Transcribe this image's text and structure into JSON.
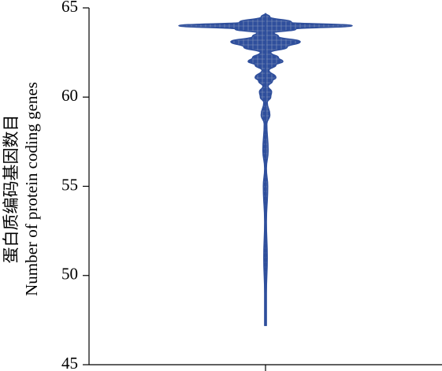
{
  "chart_data": {
    "type": "violin",
    "ylabel": [
      "蛋白质编码基因数目",
      "Number of protein coding genes"
    ],
    "categories": [
      null
    ],
    "y": [
      64.7,
      64.5,
      64.2,
      64.0,
      63.8,
      63.6,
      63.4,
      63.1,
      62.8,
      62.5,
      62.2,
      62.0,
      61.8,
      61.5,
      61.1,
      60.9,
      60.6,
      60.3,
      60.0,
      59.7,
      59.0,
      58.5,
      57.0,
      56.0,
      55.0,
      53.0,
      51.0,
      49.0,
      47.2
    ],
    "density": [
      0.0,
      0.05,
      0.3,
      1.0,
      0.35,
      0.1,
      0.15,
      0.4,
      0.25,
      0.06,
      0.15,
      0.2,
      0.12,
      0.04,
      0.12,
      0.08,
      0.03,
      0.07,
      0.06,
      0.02,
      0.05,
      0.015,
      0.03,
      0.01,
      0.025,
      0.01,
      0.02,
      0.01,
      0.01
    ],
    "color": "#2f4f9c",
    "ylim": [
      45,
      65
    ],
    "yticks": [
      45,
      50,
      55,
      60,
      65
    ]
  }
}
